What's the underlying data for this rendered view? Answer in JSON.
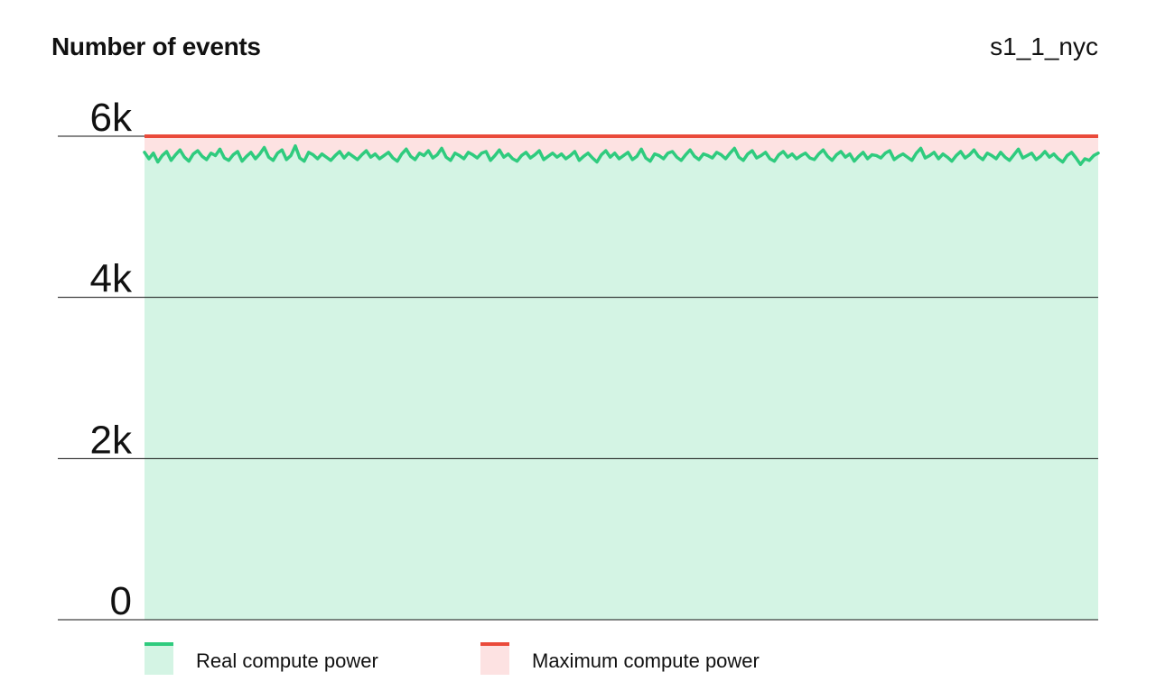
{
  "chart_data": {
    "type": "area",
    "title": "Number of events",
    "subtitle": "s1_1_nyc",
    "xlabel": "",
    "ylabel": "",
    "ylim": [
      0,
      6000
    ],
    "yticks": [
      0,
      2000,
      4000,
      6000
    ],
    "ytick_labels": [
      "0",
      "2k",
      "4k",
      "6k"
    ],
    "grid": true,
    "legend_position": "bottom",
    "colors": {
      "real_line": "#2fcb7e",
      "real_fill": "#d4f4e4",
      "max_line": "#ea4a3a",
      "max_fill": "#fde2e2"
    },
    "series": [
      {
        "name": "Real compute power",
        "style": "area",
        "values": [
          5800,
          5720,
          5790,
          5680,
          5760,
          5810,
          5700,
          5770,
          5830,
          5740,
          5690,
          5780,
          5820,
          5750,
          5710,
          5790,
          5760,
          5840,
          5730,
          5700,
          5770,
          5810,
          5690,
          5750,
          5800,
          5720,
          5780,
          5860,
          5740,
          5700,
          5790,
          5830,
          5710,
          5760,
          5880,
          5730,
          5690,
          5800,
          5770,
          5720,
          5780,
          5740,
          5700,
          5760,
          5810,
          5730,
          5790,
          5750,
          5710,
          5770,
          5820,
          5740,
          5780,
          5720,
          5760,
          5800,
          5730,
          5690,
          5780,
          5840,
          5750,
          5710,
          5790,
          5760,
          5820,
          5730,
          5770,
          5850,
          5740,
          5700,
          5790,
          5760,
          5720,
          5800,
          5770,
          5730,
          5790,
          5810,
          5700,
          5760,
          5830,
          5740,
          5780,
          5720,
          5690,
          5760,
          5800,
          5730,
          5770,
          5820,
          5710,
          5750,
          5790,
          5740,
          5780,
          5720,
          5760,
          5810,
          5700,
          5750,
          5790,
          5730,
          5680,
          5770,
          5820,
          5740,
          5790,
          5720,
          5760,
          5800,
          5710,
          5750,
          5840,
          5730,
          5690,
          5780,
          5760,
          5720,
          5790,
          5810,
          5740,
          5700,
          5770,
          5830,
          5750,
          5710,
          5780,
          5760,
          5730,
          5800,
          5770,
          5720,
          5790,
          5850,
          5740,
          5700,
          5780,
          5820,
          5730,
          5760,
          5800,
          5720,
          5690,
          5770,
          5810,
          5740,
          5780,
          5720,
          5760,
          5790,
          5730,
          5710,
          5780,
          5830,
          5750,
          5700,
          5770,
          5810,
          5740,
          5780,
          5690,
          5750,
          5800,
          5720,
          5770,
          5760,
          5730,
          5790,
          5820,
          5710,
          5750,
          5780,
          5740,
          5700,
          5790,
          5850,
          5730,
          5760,
          5800,
          5720,
          5780,
          5740,
          5690,
          5760,
          5810,
          5730,
          5770,
          5830,
          5750,
          5710,
          5790,
          5760,
          5720,
          5800,
          5740,
          5700,
          5770,
          5840,
          5730,
          5760,
          5790,
          5710,
          5750,
          5810,
          5740,
          5780,
          5720,
          5680,
          5760,
          5800,
          5730,
          5650,
          5720,
          5700,
          5760,
          5790
        ],
        "color": "#2fcb7e"
      },
      {
        "name": "Maximum compute power",
        "style": "line",
        "values": [
          6000,
          6000
        ],
        "color": "#ea4a3a"
      }
    ]
  }
}
